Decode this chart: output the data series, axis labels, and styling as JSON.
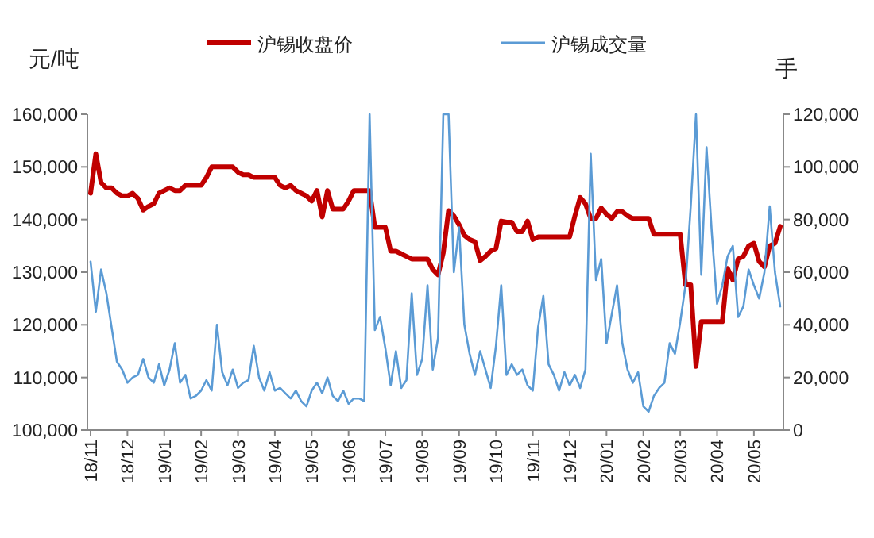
{
  "chart_data": {
    "type": "line",
    "legend": "top",
    "ylabel": "元/吨",
    "y2label": "手",
    "categories": [
      "18/11",
      null,
      null,
      null,
      null,
      null,
      null,
      "18/12",
      null,
      null,
      null,
      null,
      null,
      null,
      "19/01",
      null,
      null,
      null,
      null,
      null,
      null,
      "19/02",
      null,
      null,
      null,
      null,
      null,
      null,
      "19/03",
      null,
      null,
      null,
      null,
      null,
      null,
      "19/04",
      null,
      null,
      null,
      null,
      null,
      null,
      "19/05",
      null,
      null,
      null,
      null,
      null,
      null,
      "19/06",
      null,
      null,
      null,
      null,
      null,
      null,
      "19/07",
      null,
      null,
      null,
      null,
      null,
      null,
      "19/08",
      null,
      null,
      null,
      null,
      null,
      null,
      "19/09",
      null,
      null,
      null,
      null,
      null,
      null,
      "19/10",
      null,
      null,
      null,
      null,
      null,
      null,
      "19/11",
      null,
      null,
      null,
      null,
      null,
      null,
      "19/12",
      null,
      null,
      null,
      null,
      null,
      null,
      "20/01",
      null,
      null,
      null,
      null,
      null,
      null,
      "20/02",
      null,
      null,
      null,
      null,
      null,
      null,
      "20/03",
      null,
      null,
      null,
      null,
      null,
      null,
      "20/04",
      null,
      null,
      null,
      null,
      null,
      null,
      "20/05",
      null,
      null,
      null,
      null,
      null
    ],
    "ylim": [
      100000,
      160000
    ],
    "yticks": [
      {
        "value": 100000,
        "label": "100,000"
      },
      {
        "value": 110000,
        "label": "110,000"
      },
      {
        "value": 120000,
        "label": "120,000"
      },
      {
        "value": 130000,
        "label": "130,000"
      },
      {
        "value": 140000,
        "label": "140,000"
      },
      {
        "value": 150000,
        "label": "150,000"
      },
      {
        "value": 160000,
        "label": "160,000"
      }
    ],
    "y2lim": [
      0,
      120000
    ],
    "y2ticks": [
      0,
      {
        "value": 20000,
        "label": "20,000"
      },
      {
        "value": 40000,
        "label": "40,000"
      },
      {
        "value": 60000,
        "label": "60,000"
      },
      {
        "value": 80000,
        "label": "80,000"
      },
      {
        "value": 100000,
        "label": "100,000"
      },
      {
        "value": 120000,
        "label": "120,000"
      }
    ],
    "series": [
      {
        "name": "沪锡收盘价",
        "color": "#c00000",
        "type": "line",
        "values": [
          145000,
          152500,
          147000,
          146000,
          146000,
          145000,
          144500,
          144500,
          145000,
          144000,
          141800,
          142500,
          143000,
          145000,
          145500,
          146000,
          145500,
          145500,
          146500,
          146500,
          146500,
          146500,
          148000,
          150000,
          150000,
          150000,
          150000,
          150000,
          149000,
          148500,
          148500,
          148000,
          148000,
          148000,
          148000,
          148000,
          146500,
          146000,
          146500,
          145500,
          145000,
          144500,
          143500,
          145500,
          140500,
          145500,
          142000,
          142000,
          142000,
          143500,
          145500,
          145500,
          145500,
          145500,
          138500,
          138500,
          138500,
          134000,
          134000,
          133500,
          133000,
          132500,
          132500,
          132500,
          132500,
          130500,
          129500,
          133700,
          141700,
          140700,
          139000,
          137000,
          136200,
          135800,
          132200,
          133000,
          134000,
          134500,
          139700,
          139500,
          139500,
          137700,
          137700,
          139700,
          136200,
          136700,
          136700,
          136700,
          136700,
          136700,
          136700,
          136700,
          140700,
          144200,
          143000,
          140200,
          140200,
          142200,
          141000,
          140200,
          141500,
          141500,
          140700,
          140200,
          140200,
          140200,
          140200,
          137200,
          137200,
          137200,
          137200,
          137200,
          137200,
          127600,
          127600,
          112100,
          120600,
          120600,
          120600,
          120600,
          120600,
          130700,
          128500,
          132500,
          133000,
          135000,
          135500,
          132000,
          131000,
          135000,
          135500,
          138700
        ]
      },
      {
        "name": "沪锡成交量",
        "color": "#5b9bd5",
        "type": "line",
        "axis": "y2",
        "values": [
          64000,
          45000,
          61000,
          52000,
          39000,
          26000,
          23000,
          18000,
          20000,
          21000,
          27000,
          20000,
          18000,
          25000,
          17000,
          23000,
          33000,
          18000,
          21000,
          12000,
          13000,
          15000,
          19000,
          15000,
          40000,
          22000,
          17000,
          23000,
          16000,
          18000,
          19000,
          32000,
          20000,
          15000,
          22000,
          15000,
          16000,
          14000,
          12000,
          15000,
          11000,
          9000,
          15000,
          18000,
          14000,
          20000,
          13000,
          11000,
          15000,
          10000,
          12000,
          12000,
          11000,
          120000,
          38000,
          43000,
          31000,
          17000,
          30000,
          16000,
          19000,
          52000,
          21000,
          27000,
          55000,
          23000,
          35000,
          120000,
          120000,
          60000,
          77000,
          40000,
          29000,
          21000,
          30000,
          23000,
          16000,
          32000,
          55000,
          21000,
          25000,
          21000,
          23000,
          17000,
          15000,
          39000,
          51000,
          25000,
          21000,
          15000,
          22000,
          17000,
          21000,
          16000,
          23000,
          105000,
          57000,
          65000,
          33000,
          44000,
          55000,
          33000,
          23000,
          18000,
          22000,
          9000,
          7000,
          13000,
          16000,
          18000,
          33000,
          29000,
          41000,
          55000,
          85000,
          120000,
          59000,
          107500,
          75000,
          48000,
          55000,
          66000,
          70000,
          43000,
          47000,
          61000,
          55000,
          50000,
          60000,
          85000,
          60000,
          47000
        ]
      }
    ]
  }
}
